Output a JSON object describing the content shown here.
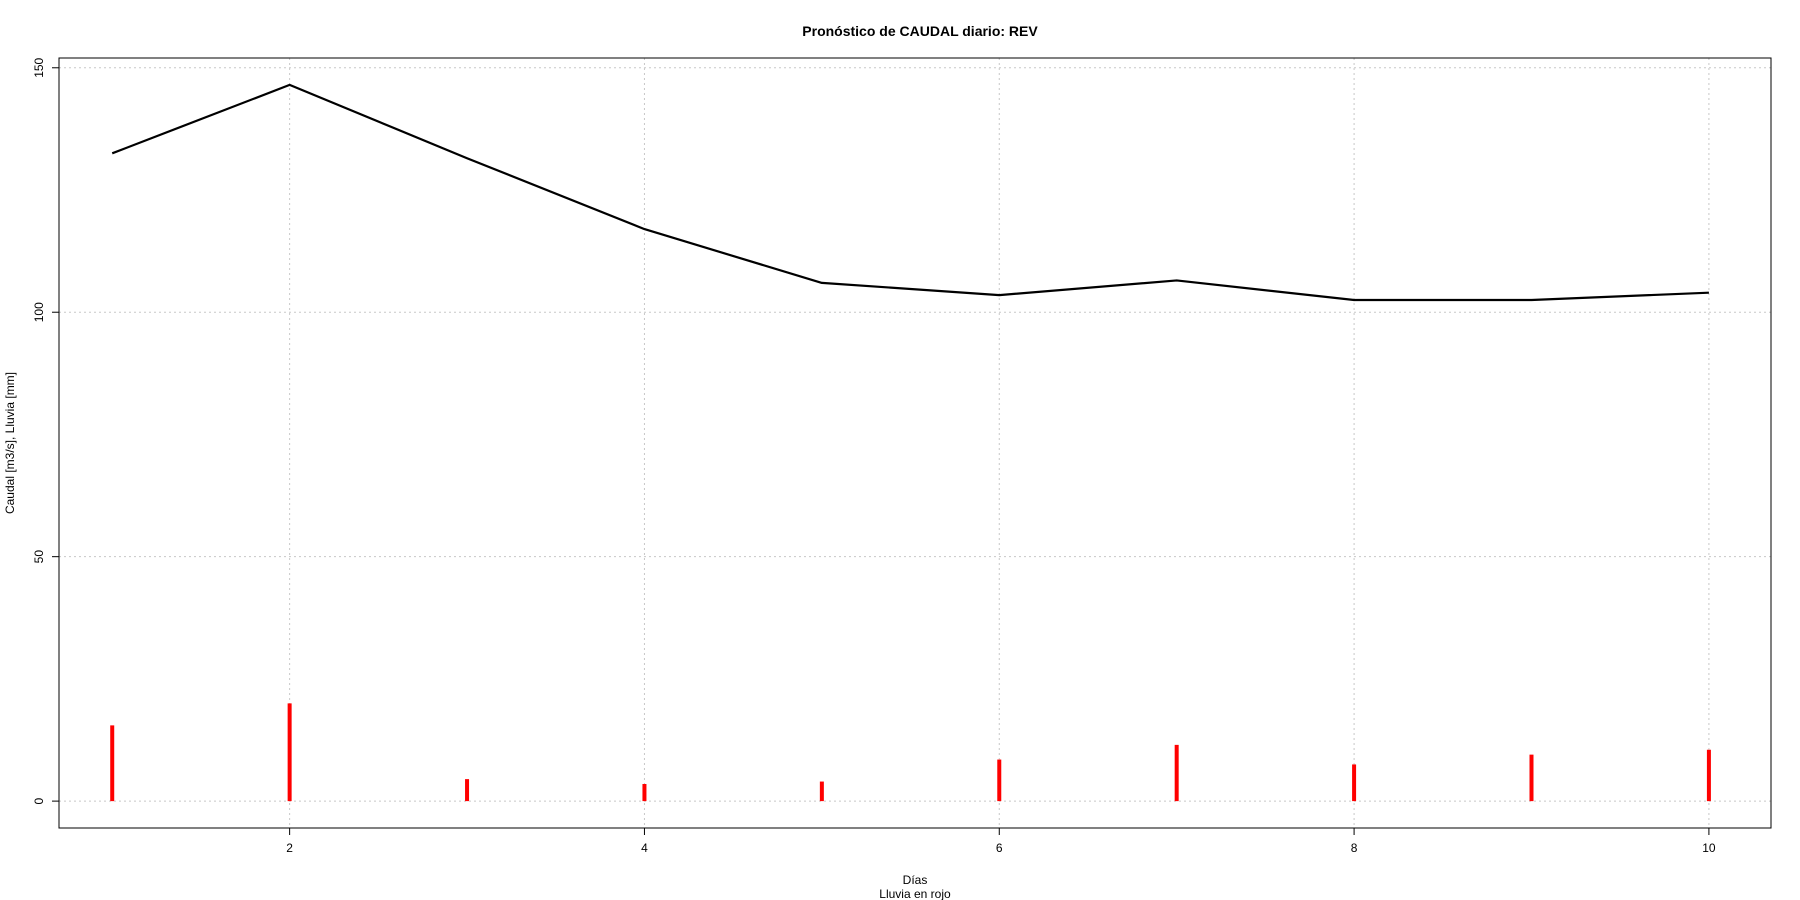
{
  "chart_data": {
    "type": "line",
    "title": "Pronóstico de CAUDAL diario: REV",
    "xlabel": "Días",
    "xlabel2": "Lluvia en rojo",
    "ylabel": "Caudal [m3/s], Lluvia [mm]",
    "x": [
      1,
      2,
      3,
      4,
      5,
      6,
      7,
      8,
      9,
      10
    ],
    "series": [
      {
        "type": "line",
        "color": "#000000",
        "values": [
          132.5,
          146.5,
          131.5,
          117.0,
          106.0,
          103.5,
          106.5,
          102.5,
          102.5,
          104.0
        ]
      },
      {
        "type": "bar",
        "color": "#ff0000",
        "values": [
          15.5,
          20.0,
          4.5,
          3.5,
          4.0,
          8.5,
          11.5,
          7.5,
          9.5,
          10.5
        ]
      }
    ],
    "xlim": [
      0.7,
      10.35
    ],
    "ylim": [
      -5.5,
      152
    ],
    "xticks": [
      2,
      4,
      6,
      8,
      10
    ],
    "yticks": [
      0,
      50,
      100,
      150
    ],
    "grid": true,
    "legend": "none"
  }
}
